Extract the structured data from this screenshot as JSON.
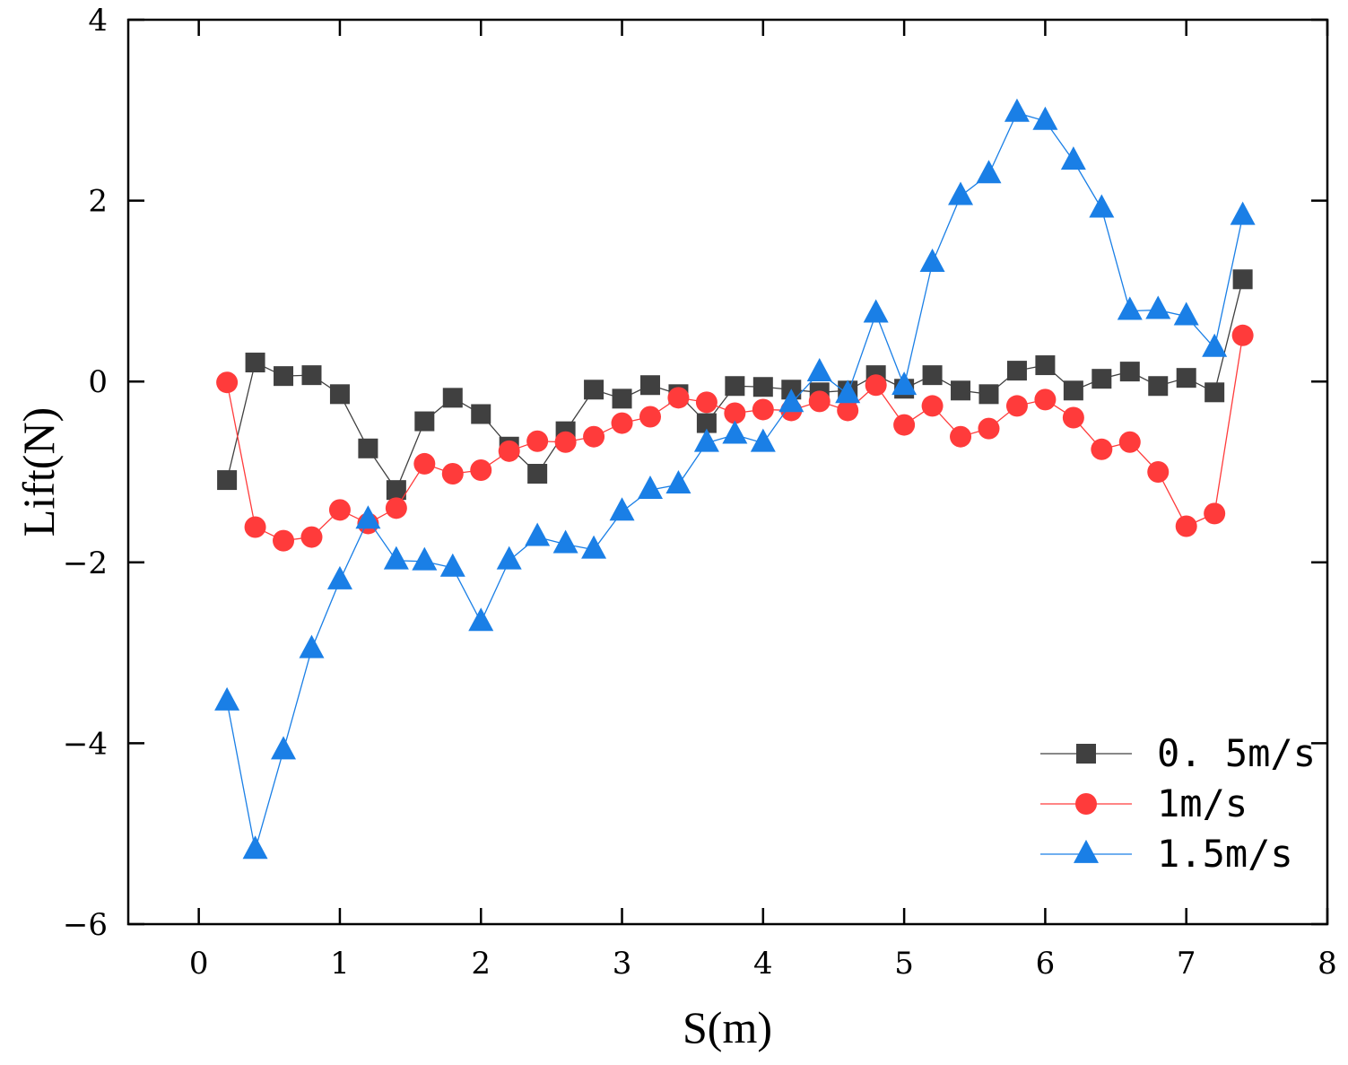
{
  "chart_data": {
    "type": "line",
    "title": "",
    "xlabel": "S(m)",
    "ylabel": "Lift(N)",
    "xlim": [
      -0.5,
      8
    ],
    "ylim": [
      -6,
      4
    ],
    "xticks": [
      0,
      1,
      2,
      3,
      4,
      5,
      6,
      7,
      8
    ],
    "yticks": [
      -6,
      -4,
      -2,
      0,
      2,
      4
    ],
    "xtick_labels": [
      "0",
      "1",
      "2",
      "3",
      "4",
      "5",
      "6",
      "7",
      "8"
    ],
    "ytick_labels": [
      "−6",
      "−4",
      "−2",
      "0",
      "2",
      "4"
    ],
    "grid": false,
    "legend_position": "bottom-right",
    "x": [
      0.2,
      0.4,
      0.6,
      0.8,
      1.0,
      1.2,
      1.4,
      1.6,
      1.8,
      2.0,
      2.2,
      2.4,
      2.6,
      2.8,
      3.0,
      3.2,
      3.4,
      3.6,
      3.8,
      4.0,
      4.2,
      4.4,
      4.6,
      4.8,
      5.0,
      5.2,
      5.4,
      5.6,
      5.8,
      6.0,
      6.2,
      6.4,
      6.6,
      6.8,
      7.0,
      7.2,
      7.4
    ],
    "series": [
      {
        "name": "0. 5m/s",
        "color": "#404040",
        "marker": "square",
        "values": [
          -1.09,
          0.21,
          0.06,
          0.07,
          -0.14,
          -0.74,
          -1.2,
          -0.44,
          -0.18,
          -0.36,
          -0.72,
          -1.02,
          -0.55,
          -0.09,
          -0.19,
          -0.04,
          -0.14,
          -0.46,
          -0.05,
          -0.06,
          -0.09,
          -0.12,
          -0.1,
          0.07,
          -0.08,
          0.07,
          -0.1,
          -0.14,
          0.12,
          0.18,
          -0.1,
          0.03,
          0.11,
          -0.05,
          0.04,
          -0.12,
          1.13
        ]
      },
      {
        "name": "1m/s",
        "color": "#ff3b3b",
        "marker": "circle",
        "values": [
          -0.01,
          -1.61,
          -1.76,
          -1.72,
          -1.42,
          -1.57,
          -1.4,
          -0.91,
          -1.02,
          -0.98,
          -0.77,
          -0.66,
          -0.67,
          -0.61,
          -0.46,
          -0.39,
          -0.18,
          -0.23,
          -0.35,
          -0.31,
          -0.32,
          -0.22,
          -0.32,
          -0.04,
          -0.48,
          -0.27,
          -0.61,
          -0.52,
          -0.27,
          -0.2,
          -0.4,
          -0.75,
          -0.67,
          -1.0,
          -1.6,
          -1.46,
          0.51
        ]
      },
      {
        "name": "1.5m/s",
        "color": "#1a7fe6",
        "marker": "triangle",
        "values": [
          -3.54,
          -5.18,
          -4.08,
          -2.96,
          -2.2,
          -1.53,
          -1.98,
          -1.99,
          -2.06,
          -2.66,
          -1.98,
          -1.72,
          -1.8,
          -1.86,
          -1.44,
          -1.2,
          -1.14,
          -0.68,
          -0.59,
          -0.68,
          -0.24,
          0.1,
          -0.14,
          0.75,
          -0.05,
          1.31,
          2.05,
          2.29,
          2.97,
          2.88,
          2.44,
          1.91,
          0.78,
          0.79,
          0.72,
          0.37,
          1.83
        ]
      }
    ]
  }
}
